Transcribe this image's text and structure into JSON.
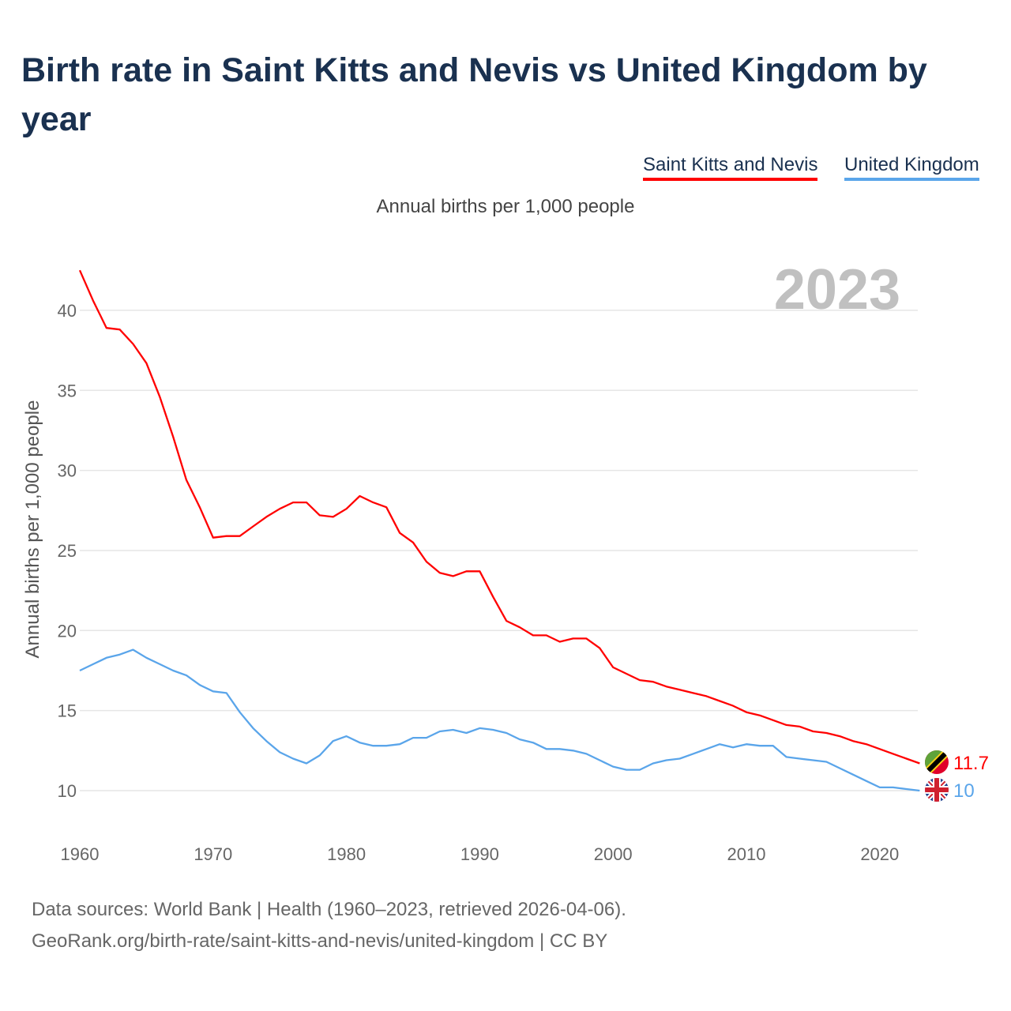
{
  "chart_data": {
    "type": "line",
    "title": "Birth rate in Saint Kitts and Nevis vs United Kingdom by year",
    "subtitle": "Annual births per 1,000 people",
    "xlabel": "",
    "ylabel": "Annual births per 1,000 people",
    "year_label": "2023",
    "xlim": [
      1960,
      2023
    ],
    "ylim": [
      10,
      40
    ],
    "x_ticks": [
      1960,
      1970,
      1980,
      1990,
      2000,
      2010,
      2020
    ],
    "y_ticks": [
      10,
      15,
      20,
      25,
      30,
      35,
      40
    ],
    "grid": true,
    "legend_position": "top-right",
    "x": [
      1960,
      1961,
      1962,
      1963,
      1964,
      1965,
      1966,
      1967,
      1968,
      1969,
      1970,
      1971,
      1972,
      1973,
      1974,
      1975,
      1976,
      1977,
      1978,
      1979,
      1980,
      1981,
      1982,
      1983,
      1984,
      1985,
      1986,
      1987,
      1988,
      1989,
      1990,
      1991,
      1992,
      1993,
      1994,
      1995,
      1996,
      1997,
      1998,
      1999,
      2000,
      2001,
      2002,
      2003,
      2004,
      2005,
      2006,
      2007,
      2008,
      2009,
      2010,
      2011,
      2012,
      2013,
      2014,
      2015,
      2016,
      2017,
      2018,
      2019,
      2020,
      2021,
      2022,
      2023
    ],
    "series": [
      {
        "name": "Saint Kitts and Nevis",
        "color": "#ff0000",
        "end_label": "11.7",
        "flag": "saint-kitts-and-nevis-flag",
        "values": [
          42.5,
          40.6,
          38.9,
          38.8,
          37.9,
          36.7,
          34.6,
          32.1,
          29.4,
          27.7,
          25.8,
          25.9,
          25.9,
          26.5,
          27.1,
          27.6,
          28.0,
          28.0,
          27.2,
          27.1,
          27.6,
          28.4,
          28.0,
          27.7,
          26.1,
          25.5,
          24.3,
          23.6,
          23.4,
          23.7,
          23.7,
          22.1,
          20.6,
          20.2,
          19.7,
          19.7,
          19.3,
          19.5,
          19.5,
          18.9,
          17.7,
          17.3,
          16.9,
          16.8,
          16.5,
          16.3,
          16.1,
          15.9,
          15.6,
          15.3,
          14.9,
          14.7,
          14.4,
          14.1,
          14.0,
          13.7,
          13.6,
          13.4,
          13.1,
          12.9,
          12.6,
          12.3,
          12.0,
          11.7
        ]
      },
      {
        "name": "United Kingdom",
        "color": "#5aa5ea",
        "end_label": "10",
        "flag": "united-kingdom-flag",
        "values": [
          17.5,
          17.9,
          18.3,
          18.5,
          18.8,
          18.3,
          17.9,
          17.5,
          17.2,
          16.6,
          16.2,
          16.1,
          14.9,
          13.9,
          13.1,
          12.4,
          12.0,
          11.7,
          12.2,
          13.1,
          13.4,
          13.0,
          12.8,
          12.8,
          12.9,
          13.3,
          13.3,
          13.7,
          13.8,
          13.6,
          13.9,
          13.8,
          13.6,
          13.2,
          13.0,
          12.6,
          12.6,
          12.5,
          12.3,
          11.9,
          11.5,
          11.3,
          11.3,
          11.7,
          11.9,
          12.0,
          12.3,
          12.6,
          12.9,
          12.7,
          12.9,
          12.8,
          12.8,
          12.1,
          12.0,
          11.9,
          11.8,
          11.4,
          11.0,
          10.6,
          10.2,
          10.2,
          10.1,
          10.0
        ]
      }
    ]
  },
  "footer": {
    "source_line": "Data sources: World Bank | Health (1960–2023, retrieved 2026-04-06).",
    "url_line": "GeoRank.org/birth-rate/saint-kitts-and-nevis/united-kingdom | CC BY"
  }
}
